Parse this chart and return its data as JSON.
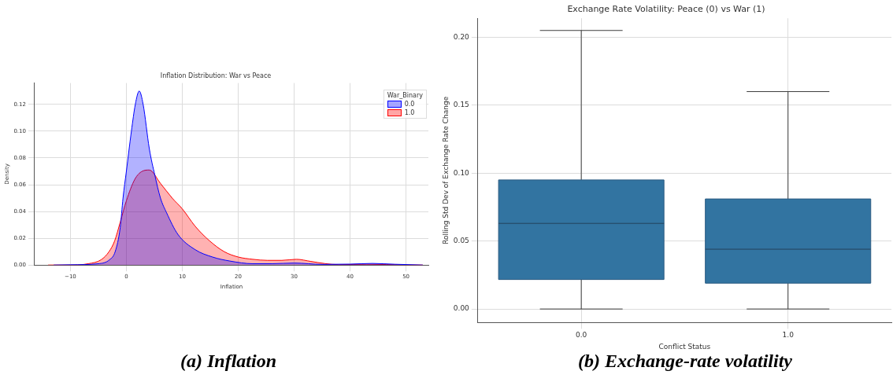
{
  "chart_data": [
    {
      "type": "area",
      "title": "Inflation Distribution: War vs Peace",
      "xlabel": "Inflation",
      "ylabel": "Density",
      "legend_title": "War_Binary",
      "legend": "top right",
      "grid": true,
      "xlim": [
        -16.4,
        54
      ],
      "ylim": [
        0,
        0.136
      ],
      "xticks": [
        {
          "value": -10,
          "label": "−10"
        },
        0,
        10,
        20,
        30,
        40,
        50
      ],
      "yticks": [
        {
          "value": 0,
          "label": "0.00"
        },
        {
          "value": 0.02,
          "label": "0.02"
        },
        {
          "value": 0.04,
          "label": "0.04"
        },
        {
          "value": 0.06,
          "label": "0.06"
        },
        {
          "value": 0.08,
          "label": "0.08"
        },
        {
          "value": 0.1,
          "label": "0.10"
        },
        {
          "value": 0.12,
          "label": "0.12"
        }
      ],
      "series": [
        {
          "name": "0.0",
          "color": "#0000ff",
          "x": [
            -13,
            -10,
            -5,
            -3,
            -2,
            -1.1,
            -0.6,
            0,
            0.9,
            1.6,
            2.3,
            3,
            4.1,
            5.1,
            6.1,
            7.2,
            9.2,
            12.3,
            15.4,
            18.5,
            22.6,
            26,
            30,
            35,
            40,
            44,
            48,
            53
          ],
          "values": [
            0,
            0.0002,
            0.001,
            0.004,
            0.01,
            0.028,
            0.05,
            0.07,
            0.1,
            0.12,
            0.13,
            0.12,
            0.087,
            0.067,
            0.05,
            0.039,
            0.023,
            0.0115,
            0.006,
            0.003,
            0.001,
            0.001,
            0.0015,
            0.0005,
            0.0007,
            0.0012,
            0.0006,
            0
          ]
        },
        {
          "name": "1.0",
          "color": "#ff0000",
          "x": [
            -14,
            -10,
            -6.8,
            -4.5,
            -3.1,
            -2.1,
            -1.1,
            0,
            1.5,
            2.8,
            4.1,
            6.1,
            8.2,
            10,
            12.3,
            14.9,
            17.5,
            20,
            22.6,
            25.2,
            27.8,
            30.4,
            33,
            35.5,
            38,
            43,
            50,
            53
          ],
          "values": [
            0,
            0,
            0.001,
            0.004,
            0.01,
            0.018,
            0.032,
            0.048,
            0.064,
            0.07,
            0.071,
            0.061,
            0.05,
            0.042,
            0.029,
            0.018,
            0.01,
            0.006,
            0.0043,
            0.0035,
            0.0035,
            0.0043,
            0.0027,
            0.0011,
            0.0003,
            0.0006,
            0.0001,
            0
          ]
        }
      ],
      "annotations": [
        "(a) Inflation"
      ]
    },
    {
      "type": "box",
      "title": "Exchange Rate Volatility: Peace (0) vs War (1)",
      "xlabel": "Conflict Status",
      "ylabel": "Rolling Std Dev of Exchange Rate Change",
      "grid": true,
      "color": "#3274a1",
      "categories": [
        "0.0",
        "1.0"
      ],
      "ylim": [
        -0.01,
        0.214
      ],
      "yticks": [
        {
          "value": 0,
          "label": "0.00"
        },
        {
          "value": 0.05,
          "label": "0.05"
        },
        {
          "value": 0.1,
          "label": "0.10"
        },
        {
          "value": 0.15,
          "label": "0.15"
        },
        {
          "value": 0.2,
          "label": "0.20"
        }
      ],
      "boxes": [
        {
          "low": 0,
          "q1": 0.0217,
          "median": 0.063,
          "q3": 0.095,
          "high": 0.205
        },
        {
          "low": 0,
          "q1": 0.019,
          "median": 0.044,
          "q3": 0.081,
          "high": 0.16
        }
      ],
      "annotations": [
        "(b) Exchange-rate volatility"
      ]
    }
  ]
}
